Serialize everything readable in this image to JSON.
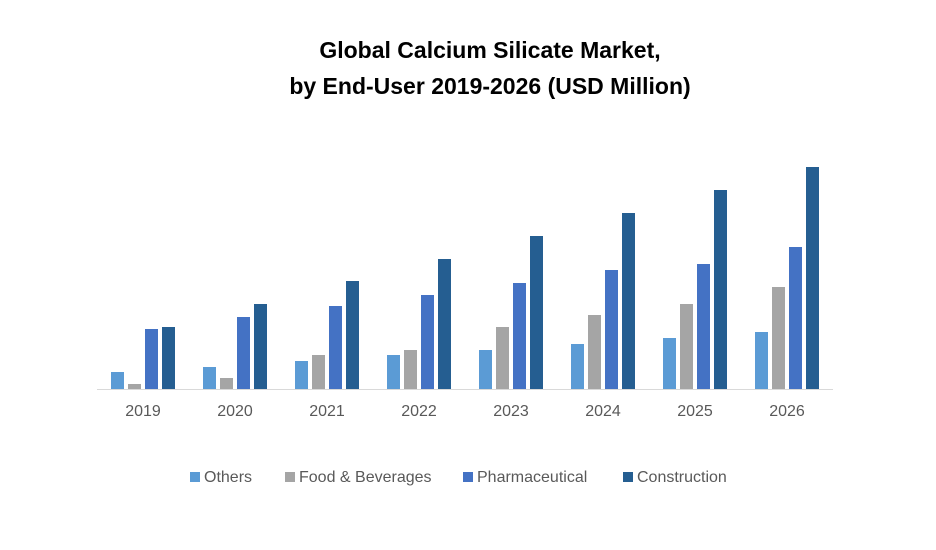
{
  "chart_data": {
    "type": "bar",
    "title": [
      "Global Calcium Silicate Market,",
      "by End-User 2019-2026 (USD Million)"
    ],
    "categories": [
      "2019",
      "2020",
      "2021",
      "2022",
      "2023",
      "2024",
      "2025",
      "2026"
    ],
    "series": [
      {
        "name": "Others",
        "color": "#5b9bd5",
        "values": [
          17,
          22,
          28,
          34,
          39,
          45,
          51,
          57
        ]
      },
      {
        "name": "Food & Beverages",
        "color": "#a5a5a5",
        "values": [
          5,
          11,
          34,
          39,
          62,
          74,
          85,
          102
        ]
      },
      {
        "name": "Pharmaceutical",
        "color": "#4472c4",
        "values": [
          60,
          72,
          83,
          94,
          106,
          119,
          125,
          142
        ]
      },
      {
        "name": "Construction",
        "color": "#255e91",
        "values": [
          62,
          85,
          108,
          130,
          153,
          176,
          199,
          222
        ]
      }
    ],
    "legend": "bottom"
  }
}
